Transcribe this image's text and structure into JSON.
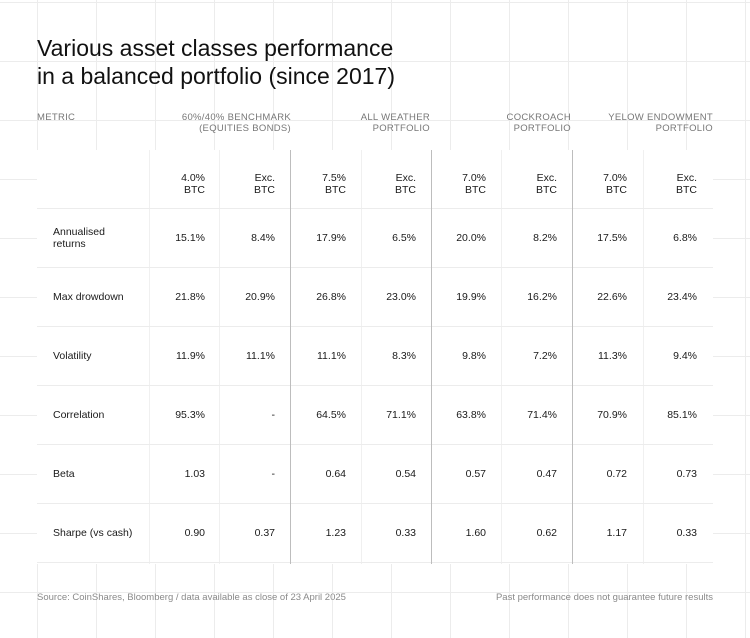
{
  "title_line1": "Various asset classes performance",
  "title_line2": "in a balanced portfolio (since 2017)",
  "chart_data": {
    "type": "table",
    "title": "Various asset classes performance in a balanced portfolio (since 2017)",
    "metric_header": "METRIC",
    "groups": [
      {
        "line1": "60%/40% BENCHMARK",
        "line2": "(EQUITIES BONDS)"
      },
      {
        "line1": "ALL WEATHER",
        "line2": "PORTFOLIO"
      },
      {
        "line1": "COCKROACH",
        "line2": "PORTFOLIO"
      },
      {
        "line1": "YELOW ENDOWMENT",
        "line2": "PORTFOLIO"
      }
    ],
    "subheaders": [
      {
        "line1": "4.0%",
        "line2": "BTC"
      },
      {
        "line1": "Exc.",
        "line2": "BTC"
      },
      {
        "line1": "7.5%",
        "line2": "BTC"
      },
      {
        "line1": "Exc.",
        "line2": "BTC"
      },
      {
        "line1": "7.0%",
        "line2": "BTC"
      },
      {
        "line1": "Exc.",
        "line2": "BTC"
      },
      {
        "line1": "7.0%",
        "line2": "BTC"
      },
      {
        "line1": "Exc.",
        "line2": "BTC"
      }
    ],
    "rows": [
      {
        "metric_line1": "Annualised",
        "metric_line2": "returns",
        "values": [
          "15.1%",
          "8.4%",
          "17.9%",
          "6.5%",
          "20.0%",
          "8.2%",
          "17.5%",
          "6.8%"
        ]
      },
      {
        "metric_line1": "Max drowdown",
        "metric_line2": "",
        "values": [
          "21.8%",
          "20.9%",
          "26.8%",
          "23.0%",
          "19.9%",
          "16.2%",
          "22.6%",
          "23.4%"
        ]
      },
      {
        "metric_line1": "Volatility",
        "metric_line2": "",
        "values": [
          "11.9%",
          "11.1%",
          "11.1%",
          "8.3%",
          "9.8%",
          "7.2%",
          "11.3%",
          "9.4%"
        ]
      },
      {
        "metric_line1": "Correlation",
        "metric_line2": "",
        "values": [
          "95.3%",
          "-",
          "64.5%",
          "71.1%",
          "63.8%",
          "71.4%",
          "70.9%",
          "85.1%"
        ]
      },
      {
        "metric_line1": "Beta",
        "metric_line2": "",
        "values": [
          "1.03",
          "-",
          "0.64",
          "0.54",
          "0.57",
          "0.47",
          "0.72",
          "0.73"
        ]
      },
      {
        "metric_line1": "Sharpe (vs cash)",
        "metric_line2": "",
        "values": [
          "0.90",
          "0.37",
          "1.23",
          "0.33",
          "1.60",
          "0.62",
          "1.17",
          "0.33"
        ]
      }
    ]
  },
  "footer": {
    "source": "Source: CoinShares, Bloomberg / data available as close of 23 April 2025",
    "disclaimer": "Past performance does not guarantee future results"
  }
}
